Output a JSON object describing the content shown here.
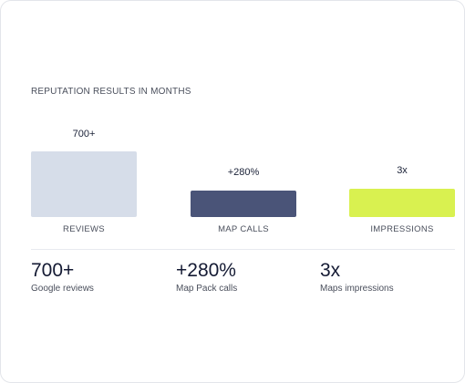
{
  "card": {
    "title": "REPUTATION RESULTS IN MONTHS",
    "bars": [
      {
        "label": "700+",
        "category": "REVIEWS"
      },
      {
        "label": "+280%",
        "category": "MAP CALLS"
      },
      {
        "label": "3x",
        "category": "IMPRESSIONS"
      }
    ],
    "stats": [
      {
        "value": "700+",
        "caption": "Google reviews"
      },
      {
        "value": "+280%",
        "caption": "Map Pack calls"
      },
      {
        "value": "3x",
        "caption": "Maps impressions"
      }
    ]
  }
}
